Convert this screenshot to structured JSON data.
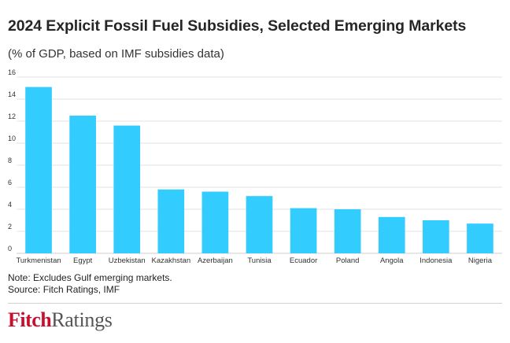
{
  "header": {
    "title": "2024 Explicit Fossil Fuel Subsidies, Selected Emerging Markets",
    "subtitle": "(% of GDP, based on IMF subsidies data)"
  },
  "footer": {
    "note": "Note: Excludes Gulf emerging markets.",
    "source": "Source: Fitch Ratings, IMF",
    "logo_part1": "Fitch",
    "logo_part2": "Ratings"
  },
  "colors": {
    "bar": "#33ccff",
    "grid": "#e3e3e3",
    "logo_red": "#c8102e"
  },
  "chart_data": {
    "type": "bar",
    "title": "2024 Explicit Fossil Fuel Subsidies, Selected Emerging Markets",
    "subtitle": "(% of GDP, based on IMF subsidies data)",
    "xlabel": "",
    "ylabel": "",
    "ylim": [
      0,
      16
    ],
    "yticks": [
      0,
      2,
      4,
      6,
      8,
      10,
      12,
      14,
      16
    ],
    "grid": true,
    "categories": [
      "Turkmenistan",
      "Egypt",
      "Uzbekistan",
      "Kazakhstan",
      "Azerbaijan",
      "Tunisia",
      "Ecuador",
      "Poland",
      "Angola",
      "Indonesia",
      "Nigeria"
    ],
    "values": [
      15.1,
      12.5,
      11.6,
      5.8,
      5.6,
      5.2,
      4.1,
      4.0,
      3.3,
      3.0,
      2.7
    ]
  }
}
